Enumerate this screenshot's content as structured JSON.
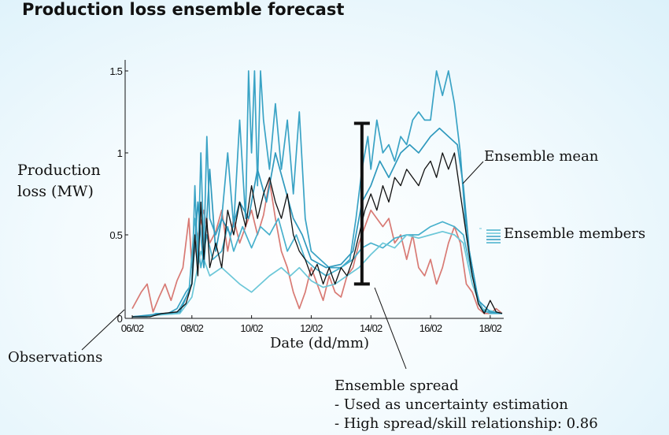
{
  "title": "Production loss ensemble forecast",
  "chart_data": {
    "type": "line",
    "title": "Production loss ensemble forecast",
    "xlabel": "Date (dd/mm)",
    "ylabel_line1": "Production",
    "ylabel_line2": "loss (MW)",
    "ylim": [
      0,
      1.5
    ],
    "xlim": [
      0,
      12.4
    ],
    "yticks": [
      {
        "value": 1.5,
        "label": "1.5"
      },
      {
        "value": 1.0,
        "label": "1"
      },
      {
        "value": 0.5,
        "label": "0.5"
      },
      {
        "value": 0.0,
        "label": "0"
      }
    ],
    "xticks": [
      {
        "value": 0,
        "label": "06/02"
      },
      {
        "value": 2,
        "label": "08/02"
      },
      {
        "value": 4,
        "label": "10/02"
      },
      {
        "value": 6,
        "label": "12/02"
      },
      {
        "value": 8,
        "label": "14/02"
      },
      {
        "value": 10,
        "label": "16/02"
      },
      {
        "value": 12,
        "label": "18/02"
      }
    ],
    "series": [
      {
        "name": "Observations",
        "color": "#d87a74",
        "width": 1.7,
        "points": [
          [
            0,
            0.05
          ],
          [
            0.3,
            0.15
          ],
          [
            0.5,
            0.2
          ],
          [
            0.7,
            0.03
          ],
          [
            0.9,
            0.12
          ],
          [
            1.1,
            0.2
          ],
          [
            1.3,
            0.1
          ],
          [
            1.5,
            0.22
          ],
          [
            1.7,
            0.3
          ],
          [
            1.8,
            0.45
          ],
          [
            1.9,
            0.6
          ],
          [
            2.0,
            0.3
          ],
          [
            2.2,
            0.5
          ],
          [
            2.4,
            0.65
          ],
          [
            2.6,
            0.45
          ],
          [
            2.8,
            0.52
          ],
          [
            3.0,
            0.65
          ],
          [
            3.2,
            0.4
          ],
          [
            3.4,
            0.6
          ],
          [
            3.6,
            0.45
          ],
          [
            3.8,
            0.55
          ],
          [
            4.0,
            0.65
          ],
          [
            4.2,
            0.5
          ],
          [
            4.4,
            0.62
          ],
          [
            4.6,
            0.83
          ],
          [
            4.8,
            0.6
          ],
          [
            5.0,
            0.4
          ],
          [
            5.2,
            0.3
          ],
          [
            5.4,
            0.15
          ],
          [
            5.6,
            0.05
          ],
          [
            5.8,
            0.15
          ],
          [
            6.0,
            0.3
          ],
          [
            6.2,
            0.2
          ],
          [
            6.4,
            0.1
          ],
          [
            6.6,
            0.25
          ],
          [
            6.8,
            0.15
          ],
          [
            7.0,
            0.12
          ],
          [
            7.2,
            0.25
          ],
          [
            7.4,
            0.3
          ],
          [
            7.6,
            0.45
          ],
          [
            7.8,
            0.55
          ],
          [
            8.0,
            0.65
          ],
          [
            8.2,
            0.6
          ],
          [
            8.4,
            0.55
          ],
          [
            8.6,
            0.6
          ],
          [
            8.8,
            0.45
          ],
          [
            9.0,
            0.5
          ],
          [
            9.2,
            0.35
          ],
          [
            9.4,
            0.5
          ],
          [
            9.6,
            0.3
          ],
          [
            9.8,
            0.25
          ],
          [
            10.0,
            0.35
          ],
          [
            10.2,
            0.2
          ],
          [
            10.4,
            0.3
          ],
          [
            10.6,
            0.45
          ],
          [
            10.8,
            0.55
          ],
          [
            11.0,
            0.45
          ],
          [
            11.2,
            0.2
          ],
          [
            11.4,
            0.15
          ],
          [
            11.6,
            0.05
          ],
          [
            11.8,
            0.02
          ],
          [
            12.0,
            0.02
          ],
          [
            12.2,
            0.05
          ],
          [
            12.4,
            0.02
          ]
        ]
      },
      {
        "name": "Ensemble member 1",
        "color": "#3aa3c5",
        "width": 1.7,
        "points": [
          [
            0,
            0
          ],
          [
            0.5,
            0
          ],
          [
            0.8,
            0.02
          ],
          [
            1.2,
            0.02
          ],
          [
            1.5,
            0.05
          ],
          [
            1.8,
            0.15
          ],
          [
            2.0,
            0.2
          ],
          [
            2.1,
            0.8
          ],
          [
            2.2,
            0.3
          ],
          [
            2.3,
            1.0
          ],
          [
            2.4,
            0.4
          ],
          [
            2.5,
            1.1
          ],
          [
            2.6,
            0.6
          ],
          [
            2.8,
            0.5
          ],
          [
            3.0,
            0.6
          ],
          [
            3.2,
            1.0
          ],
          [
            3.4,
            0.55
          ],
          [
            3.6,
            1.2
          ],
          [
            3.8,
            0.6
          ],
          [
            3.9,
            1.5
          ],
          [
            4.0,
            1.0
          ],
          [
            4.1,
            1.5
          ],
          [
            4.2,
            0.8
          ],
          [
            4.3,
            1.5
          ],
          [
            4.4,
            1.2
          ],
          [
            4.6,
            0.9
          ],
          [
            4.8,
            1.3
          ],
          [
            5.0,
            0.9
          ],
          [
            5.2,
            1.2
          ],
          [
            5.4,
            0.75
          ],
          [
            5.6,
            1.25
          ],
          [
            5.8,
            0.6
          ],
          [
            6.0,
            0.4
          ],
          [
            6.3,
            0.35
          ],
          [
            6.6,
            0.3
          ],
          [
            7.0,
            0.3
          ],
          [
            7.3,
            0.35
          ],
          [
            7.5,
            0.6
          ],
          [
            7.7,
            0.9
          ],
          [
            7.9,
            1.1
          ],
          [
            8.0,
            0.9
          ],
          [
            8.2,
            1.2
          ],
          [
            8.4,
            1.0
          ],
          [
            8.6,
            1.05
          ],
          [
            8.8,
            0.95
          ],
          [
            9.0,
            1.1
          ],
          [
            9.2,
            1.05
          ],
          [
            9.4,
            1.2
          ],
          [
            9.6,
            1.25
          ],
          [
            9.8,
            1.2
          ],
          [
            10.0,
            1.2
          ],
          [
            10.2,
            1.5
          ],
          [
            10.4,
            1.35
          ],
          [
            10.6,
            1.5
          ],
          [
            10.8,
            1.3
          ],
          [
            11.0,
            1.0
          ],
          [
            11.2,
            0.5
          ],
          [
            11.4,
            0.3
          ],
          [
            11.6,
            0.1
          ],
          [
            11.8,
            0.03
          ],
          [
            12.0,
            0.03
          ],
          [
            12.4,
            0.02
          ]
        ]
      },
      {
        "name": "Ensemble member 2",
        "color": "#47b0cc",
        "width": 1.7,
        "points": [
          [
            0,
            0
          ],
          [
            1.5,
            0.02
          ],
          [
            1.9,
            0.15
          ],
          [
            2.1,
            0.6
          ],
          [
            2.3,
            0.3
          ],
          [
            2.5,
            0.5
          ],
          [
            2.7,
            0.35
          ],
          [
            3.0,
            0.4
          ],
          [
            3.2,
            0.55
          ],
          [
            3.4,
            0.4
          ],
          [
            3.7,
            0.55
          ],
          [
            4.0,
            0.42
          ],
          [
            4.3,
            0.55
          ],
          [
            4.6,
            0.5
          ],
          [
            4.9,
            0.6
          ],
          [
            5.2,
            0.4
          ],
          [
            5.5,
            0.5
          ],
          [
            5.8,
            0.35
          ],
          [
            6.1,
            0.3
          ],
          [
            6.5,
            0.25
          ],
          [
            7.0,
            0.3
          ],
          [
            7.4,
            0.35
          ],
          [
            7.7,
            0.42
          ],
          [
            8.0,
            0.45
          ],
          [
            8.4,
            0.42
          ],
          [
            8.8,
            0.48
          ],
          [
            9.2,
            0.5
          ],
          [
            9.6,
            0.5
          ],
          [
            10.0,
            0.55
          ],
          [
            10.4,
            0.58
          ],
          [
            10.8,
            0.55
          ],
          [
            11.1,
            0.5
          ],
          [
            11.4,
            0.25
          ],
          [
            11.7,
            0.05
          ],
          [
            12.0,
            0.02
          ],
          [
            12.4,
            0.02
          ]
        ]
      },
      {
        "name": "Ensemble member 3",
        "color": "#6cc7d8",
        "width": 1.7,
        "points": [
          [
            0,
            0
          ],
          [
            1.6,
            0.02
          ],
          [
            2.0,
            0.12
          ],
          [
            2.3,
            0.4
          ],
          [
            2.6,
            0.25
          ],
          [
            3.0,
            0.3
          ],
          [
            3.3,
            0.25
          ],
          [
            3.6,
            0.2
          ],
          [
            4.0,
            0.15
          ],
          [
            4.3,
            0.2
          ],
          [
            4.6,
            0.25
          ],
          [
            5.0,
            0.3
          ],
          [
            5.3,
            0.25
          ],
          [
            5.6,
            0.3
          ],
          [
            6.0,
            0.22
          ],
          [
            6.4,
            0.18
          ],
          [
            6.8,
            0.2
          ],
          [
            7.2,
            0.25
          ],
          [
            7.6,
            0.3
          ],
          [
            8.0,
            0.38
          ],
          [
            8.4,
            0.45
          ],
          [
            8.8,
            0.42
          ],
          [
            9.2,
            0.5
          ],
          [
            9.6,
            0.48
          ],
          [
            10.0,
            0.5
          ],
          [
            10.4,
            0.52
          ],
          [
            10.8,
            0.5
          ],
          [
            11.1,
            0.45
          ],
          [
            11.4,
            0.2
          ],
          [
            11.7,
            0.05
          ],
          [
            12.4,
            0.02
          ]
        ]
      },
      {
        "name": "Ensemble member 4",
        "color": "#2f99bd",
        "width": 1.7,
        "points": [
          [
            0,
            0
          ],
          [
            1.6,
            0.03
          ],
          [
            2.0,
            0.2
          ],
          [
            2.2,
            0.7
          ],
          [
            2.4,
            0.3
          ],
          [
            2.6,
            0.9
          ],
          [
            2.8,
            0.4
          ],
          [
            3.0,
            0.6
          ],
          [
            3.3,
            0.5
          ],
          [
            3.6,
            0.7
          ],
          [
            3.9,
            0.6
          ],
          [
            4.2,
            0.9
          ],
          [
            4.5,
            0.7
          ],
          [
            4.8,
            1.0
          ],
          [
            5.1,
            0.8
          ],
          [
            5.4,
            0.6
          ],
          [
            5.7,
            0.5
          ],
          [
            6.0,
            0.35
          ],
          [
            6.5,
            0.3
          ],
          [
            7.0,
            0.32
          ],
          [
            7.4,
            0.4
          ],
          [
            7.7,
            0.7
          ],
          [
            8.0,
            0.8
          ],
          [
            8.3,
            0.95
          ],
          [
            8.6,
            0.85
          ],
          [
            9.0,
            1.0
          ],
          [
            9.3,
            1.05
          ],
          [
            9.6,
            1.0
          ],
          [
            10.0,
            1.1
          ],
          [
            10.3,
            1.15
          ],
          [
            10.6,
            1.1
          ],
          [
            10.9,
            1.05
          ],
          [
            11.1,
            0.8
          ],
          [
            11.3,
            0.4
          ],
          [
            11.6,
            0.1
          ],
          [
            12.0,
            0.03
          ],
          [
            12.4,
            0.02
          ]
        ]
      },
      {
        "name": "Ensemble mean",
        "color": "#111111",
        "width": 1.3,
        "points": [
          [
            0,
            0
          ],
          [
            0.6,
            0
          ],
          [
            1.0,
            0.02
          ],
          [
            1.5,
            0.03
          ],
          [
            1.8,
            0.08
          ],
          [
            2.0,
            0.2
          ],
          [
            2.1,
            0.5
          ],
          [
            2.2,
            0.25
          ],
          [
            2.3,
            0.7
          ],
          [
            2.4,
            0.35
          ],
          [
            2.5,
            0.6
          ],
          [
            2.6,
            0.3
          ],
          [
            2.8,
            0.45
          ],
          [
            3.0,
            0.3
          ],
          [
            3.2,
            0.65
          ],
          [
            3.4,
            0.5
          ],
          [
            3.6,
            0.7
          ],
          [
            3.8,
            0.55
          ],
          [
            4.0,
            0.8
          ],
          [
            4.2,
            0.6
          ],
          [
            4.4,
            0.75
          ],
          [
            4.6,
            0.85
          ],
          [
            4.8,
            0.7
          ],
          [
            5.0,
            0.6
          ],
          [
            5.2,
            0.75
          ],
          [
            5.4,
            0.5
          ],
          [
            5.6,
            0.4
          ],
          [
            5.8,
            0.35
          ],
          [
            6.0,
            0.25
          ],
          [
            6.2,
            0.32
          ],
          [
            6.4,
            0.2
          ],
          [
            6.6,
            0.3
          ],
          [
            6.8,
            0.2
          ],
          [
            7.0,
            0.3
          ],
          [
            7.2,
            0.25
          ],
          [
            7.4,
            0.35
          ],
          [
            7.6,
            0.5
          ],
          [
            7.8,
            0.65
          ],
          [
            8.0,
            0.75
          ],
          [
            8.2,
            0.65
          ],
          [
            8.4,
            0.8
          ],
          [
            8.6,
            0.7
          ],
          [
            8.8,
            0.85
          ],
          [
            9.0,
            0.8
          ],
          [
            9.2,
            0.9
          ],
          [
            9.4,
            0.85
          ],
          [
            9.6,
            0.8
          ],
          [
            9.8,
            0.9
          ],
          [
            10.0,
            0.95
          ],
          [
            10.2,
            0.85
          ],
          [
            10.4,
            1.0
          ],
          [
            10.6,
            0.9
          ],
          [
            10.8,
            1.0
          ],
          [
            11.0,
            0.75
          ],
          [
            11.2,
            0.5
          ],
          [
            11.4,
            0.25
          ],
          [
            11.6,
            0.08
          ],
          [
            11.8,
            0.02
          ],
          [
            12.0,
            0.1
          ],
          [
            12.2,
            0.03
          ],
          [
            12.4,
            0.02
          ]
        ]
      }
    ],
    "spread_bar": {
      "x": 7.7,
      "low": 0.2,
      "high": 1.18
    }
  },
  "annotations": {
    "ensemble_mean": "Ensemble mean",
    "ensemble_members": "Ensemble members",
    "observations": "Observations",
    "spread_title": "Ensemble spread",
    "spread_line1": "- Used as uncertainty estimation",
    "spread_line2": "- High spread/skill relationship: 0.86"
  }
}
